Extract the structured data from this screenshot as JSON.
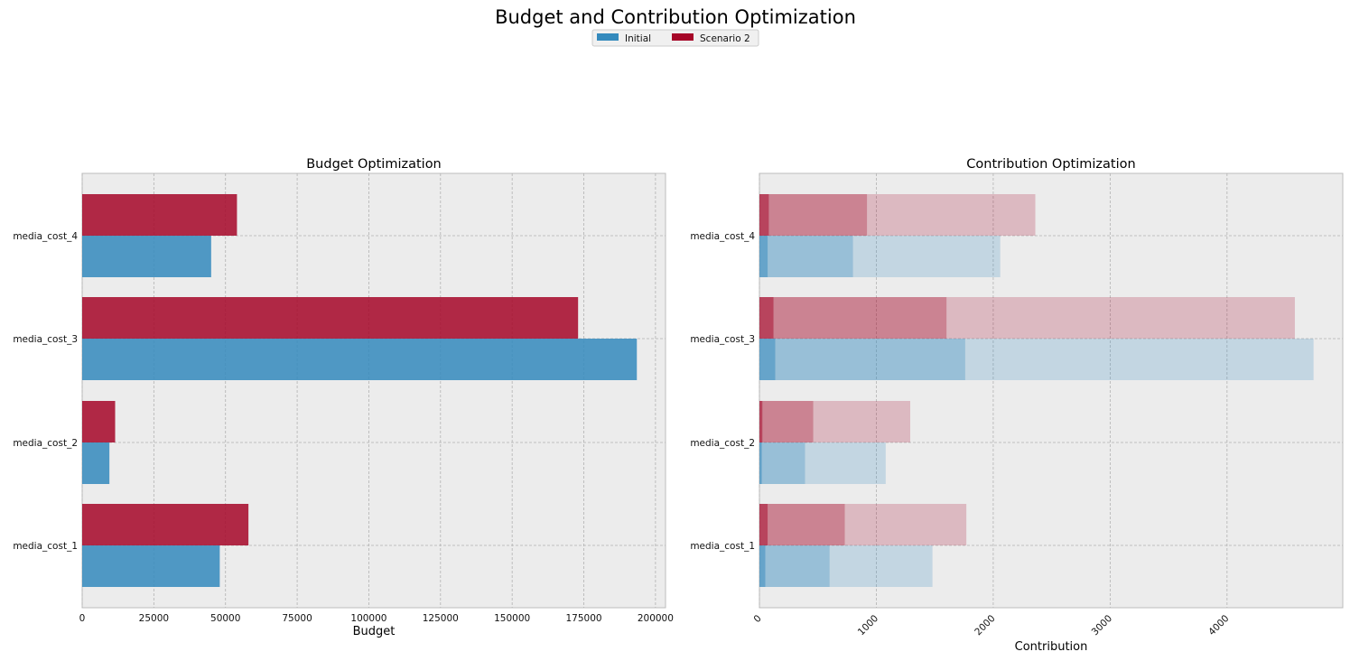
{
  "figure": {
    "title": "Budget and Contribution Optimization",
    "legend": {
      "placement": "top-center",
      "entries": [
        {
          "label": "Initial",
          "color": "#348ABD"
        },
        {
          "label": "Scenario 2",
          "color": "#A60628"
        }
      ]
    }
  },
  "chart_data": [
    {
      "type": "bar",
      "orientation": "horizontal",
      "title": "Budget Optimization",
      "xlabel": "Budget",
      "ylabel": "",
      "categories": [
        "media_cost_1",
        "media_cost_2",
        "media_cost_3",
        "media_cost_4"
      ],
      "xlim": [
        0,
        203500
      ],
      "xticks": [
        0,
        25000,
        50000,
        75000,
        100000,
        125000,
        150000,
        175000,
        200000
      ],
      "grid": true,
      "series": [
        {
          "name": "Initial",
          "color": "#348ABD",
          "values": [
            48000,
            9500,
            193500,
            45000
          ]
        },
        {
          "name": "Scenario 2",
          "color": "#A60628",
          "values": [
            58000,
            11500,
            173000,
            54000
          ]
        }
      ]
    },
    {
      "type": "bar",
      "orientation": "horizontal",
      "stacked": "overlaid intervals",
      "title": "Contribution Optimization",
      "xlabel": "Contribution",
      "ylabel": "",
      "categories": [
        "media_cost_1",
        "media_cost_2",
        "media_cost_3",
        "media_cost_4"
      ],
      "xlim": [
        0,
        4990
      ],
      "xticks": [
        0,
        1000,
        2000,
        3000,
        4000
      ],
      "xtick_rotation": 45,
      "grid": true,
      "series": [
        {
          "name": "Initial",
          "color": "#348ABD",
          "low": [
            50,
            20,
            135,
            70
          ],
          "mid": [
            600,
            390,
            1760,
            800
          ],
          "high": [
            1480,
            1080,
            4740,
            2060
          ]
        },
        {
          "name": "Scenario 2",
          "color": "#A60628",
          "low": [
            70,
            25,
            120,
            80
          ],
          "mid": [
            730,
            460,
            1600,
            920
          ],
          "high": [
            1770,
            1290,
            4580,
            2360
          ]
        }
      ]
    }
  ]
}
